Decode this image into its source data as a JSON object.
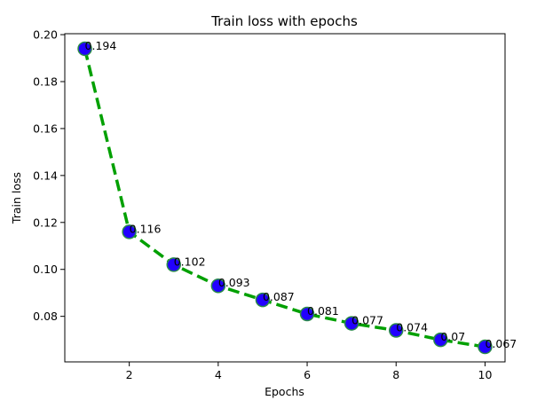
{
  "chart_data": {
    "type": "line",
    "title": "Train loss with epochs",
    "xlabel": "Epochs",
    "ylabel": "Train loss",
    "x": [
      1,
      2,
      3,
      4,
      5,
      6,
      7,
      8,
      9,
      10
    ],
    "series": [
      {
        "values": [
          0.194,
          0.116,
          0.102,
          0.093,
          0.087,
          0.081,
          0.077,
          0.074,
          0.07,
          0.067
        ],
        "labels": [
          "0.194",
          "0.116",
          "0.102",
          "0.093",
          "0.087",
          "0.081",
          "0.077",
          "0.074",
          "0.07",
          "0.067"
        ],
        "line_color": "#00a000",
        "line_style": "dashed",
        "marker_fill": "#2200ff",
        "marker_edge": "#2a8a4a"
      }
    ],
    "xlim": [
      0.55,
      10.45
    ],
    "ylim": [
      0.0606,
      0.2004
    ],
    "xticks": [
      2,
      4,
      6,
      8,
      10
    ],
    "xtick_labels": [
      "2",
      "4",
      "6",
      "8",
      "10"
    ],
    "yticks": [
      0.08,
      0.1,
      0.12,
      0.14,
      0.16,
      0.18,
      0.2
    ],
    "ytick_labels": [
      "0.08",
      "0.10",
      "0.12",
      "0.14",
      "0.16",
      "0.18",
      "0.20"
    ],
    "grid": false,
    "legend": "none"
  }
}
